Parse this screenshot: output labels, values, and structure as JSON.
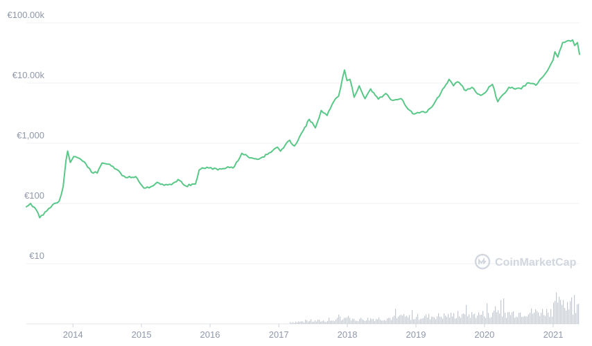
{
  "chart_data": {
    "type": "line",
    "title": "",
    "currency_symbol": "€",
    "y_scale": "log",
    "ylim": [
      10,
      100000
    ],
    "x_range": [
      "2013-04-28",
      "2021-05-21"
    ],
    "grid": true,
    "line_color": "#59c787",
    "volume_color": "#b8bec8",
    "yticks": [
      {
        "value": 10,
        "label": "€10"
      },
      {
        "value": 100,
        "label": "€100"
      },
      {
        "value": 1000,
        "label": "€1,000"
      },
      {
        "value": 10000,
        "label": "€10.00k"
      },
      {
        "value": 100000,
        "label": "€100.00k"
      }
    ],
    "xticks": [
      {
        "date": "2014-01-01",
        "label": "2014"
      },
      {
        "date": "2015-01-01",
        "label": "2015"
      },
      {
        "date": "2016-01-01",
        "label": "2016"
      },
      {
        "date": "2017-01-01",
        "label": "2017"
      },
      {
        "date": "2018-01-01",
        "label": "2018"
      },
      {
        "date": "2019-01-01",
        "label": "2019"
      },
      {
        "date": "2020-01-01",
        "label": "2020"
      },
      {
        "date": "2021-01-01",
        "label": "2021"
      }
    ],
    "series": [
      {
        "values": [
          [
            "2013-04-28",
            88
          ],
          [
            "2013-05-20",
            100
          ],
          [
            "2013-06-20",
            78
          ],
          [
            "2013-07-08",
            58
          ],
          [
            "2013-08-15",
            75
          ],
          [
            "2013-09-15",
            95
          ],
          [
            "2013-10-20",
            110
          ],
          [
            "2013-11-10",
            190
          ],
          [
            "2013-11-25",
            520
          ],
          [
            "2013-12-04",
            740
          ],
          [
            "2013-12-18",
            480
          ],
          [
            "2014-01-05",
            600
          ],
          [
            "2014-02-05",
            560
          ],
          [
            "2014-03-10",
            460
          ],
          [
            "2014-04-10",
            330
          ],
          [
            "2014-05-10",
            320
          ],
          [
            "2014-06-05",
            470
          ],
          [
            "2014-07-15",
            450
          ],
          [
            "2014-08-20",
            370
          ],
          [
            "2014-09-20",
            290
          ],
          [
            "2014-10-20",
            270
          ],
          [
            "2014-12-01",
            280
          ],
          [
            "2015-01-14",
            180
          ],
          [
            "2015-02-20",
            190
          ],
          [
            "2015-03-25",
            225
          ],
          [
            "2015-05-01",
            200
          ],
          [
            "2015-06-10",
            205
          ],
          [
            "2015-07-15",
            250
          ],
          [
            "2015-08-25",
            195
          ],
          [
            "2015-10-15",
            210
          ],
          [
            "2015-11-04",
            360
          ],
          [
            "2015-12-15",
            400
          ],
          [
            "2016-01-15",
            370
          ],
          [
            "2016-03-10",
            380
          ],
          [
            "2016-05-10",
            410
          ],
          [
            "2016-06-18",
            680
          ],
          [
            "2016-07-20",
            600
          ],
          [
            "2016-09-10",
            540
          ],
          [
            "2016-11-01",
            650
          ],
          [
            "2016-12-25",
            860
          ],
          [
            "2017-01-10",
            740
          ],
          [
            "2017-02-28",
            1120
          ],
          [
            "2017-03-25",
            900
          ],
          [
            "2017-05-10",
            1600
          ],
          [
            "2017-06-12",
            2500
          ],
          [
            "2017-07-15",
            1800
          ],
          [
            "2017-08-15",
            3500
          ],
          [
            "2017-09-15",
            2900
          ],
          [
            "2017-10-20",
            4900
          ],
          [
            "2017-11-15",
            6000
          ],
          [
            "2017-12-17",
            16500
          ],
          [
            "2017-12-30",
            11000
          ],
          [
            "2018-01-15",
            11500
          ],
          [
            "2018-02-06",
            5800
          ],
          [
            "2018-03-05",
            9000
          ],
          [
            "2018-04-05",
            5500
          ],
          [
            "2018-05-05",
            8000
          ],
          [
            "2018-06-15",
            5400
          ],
          [
            "2018-07-25",
            6700
          ],
          [
            "2018-08-20",
            5300
          ],
          [
            "2018-10-15",
            5500
          ],
          [
            "2018-11-20",
            3700
          ],
          [
            "2018-12-15",
            3100
          ],
          [
            "2019-01-20",
            3200
          ],
          [
            "2019-02-28",
            3300
          ],
          [
            "2019-04-05",
            4400
          ],
          [
            "2019-05-15",
            7000
          ],
          [
            "2019-06-26",
            11500
          ],
          [
            "2019-07-20",
            9000
          ],
          [
            "2019-08-10",
            10500
          ],
          [
            "2019-09-25",
            7500
          ],
          [
            "2019-10-26",
            8500
          ],
          [
            "2019-11-25",
            6600
          ],
          [
            "2019-12-20",
            6400
          ],
          [
            "2020-02-12",
            9500
          ],
          [
            "2020-03-12",
            4900
          ],
          [
            "2020-04-10",
            6500
          ],
          [
            "2020-05-10",
            8500
          ],
          [
            "2020-07-15",
            8000
          ],
          [
            "2020-08-15",
            10000
          ],
          [
            "2020-10-01",
            9200
          ],
          [
            "2020-11-10",
            13000
          ],
          [
            "2020-12-01",
            16000
          ],
          [
            "2020-12-31",
            24000
          ],
          [
            "2021-01-10",
            33000
          ],
          [
            "2021-01-25",
            27000
          ],
          [
            "2021-02-20",
            47000
          ],
          [
            "2021-03-15",
            50000
          ],
          [
            "2021-04-14",
            52000
          ],
          [
            "2021-04-25",
            42000
          ],
          [
            "2021-05-10",
            47000
          ],
          [
            "2021-05-21",
            30000
          ]
        ]
      }
    ]
  },
  "watermark": {
    "text": "CoinMarketCap",
    "icon": "coinmarketcap-logo-icon"
  }
}
